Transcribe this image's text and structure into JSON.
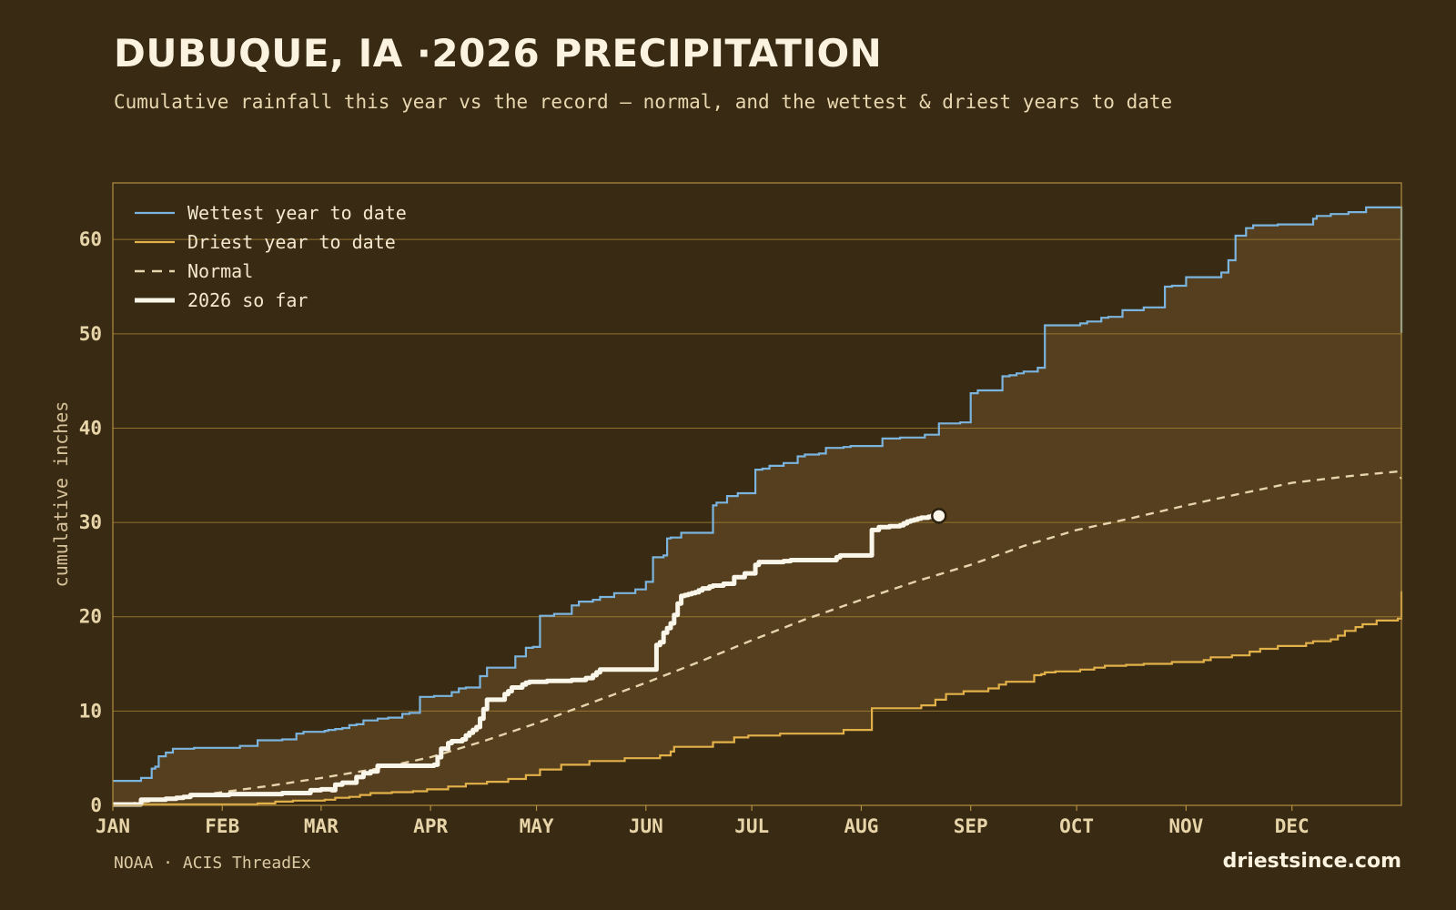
{
  "header": {
    "title": "DUBUQUE, IA ·2026 PRECIPITATION",
    "subtitle": "Cumulative rainfall this year vs the record — normal, and the wettest & driest years to date"
  },
  "footer": {
    "source": "NOAA · ACIS ThreadEx",
    "brand": "driestsince.com"
  },
  "colors": {
    "background": "#382a13",
    "band_fill": "#553f1e",
    "frame": "#b38f3f",
    "grid": "#a17f33",
    "wettest": "#7bb5df",
    "driest": "#e3b14a",
    "normal": "#e6d4ad",
    "current": "#fbf6ea"
  },
  "chart_data": {
    "type": "line",
    "ylabel": "cumulative inches",
    "ylim": [
      0,
      66
    ],
    "xlim": [
      0,
      365
    ],
    "grid": true,
    "legend_position": "top-left",
    "month_ticks": [
      {
        "label": "JAN",
        "day": 0
      },
      {
        "label": "FEB",
        "day": 31
      },
      {
        "label": "MAR",
        "day": 59
      },
      {
        "label": "APR",
        "day": 90
      },
      {
        "label": "MAY",
        "day": 120
      },
      {
        "label": "JUN",
        "day": 151
      },
      {
        "label": "JUL",
        "day": 181
      },
      {
        "label": "AUG",
        "day": 212
      },
      {
        "label": "SEP",
        "day": 243
      },
      {
        "label": "OCT",
        "day": 273
      },
      {
        "label": "NOV",
        "day": 304
      },
      {
        "label": "DEC",
        "day": 334
      }
    ],
    "y_ticks": [
      0,
      10,
      20,
      30,
      40,
      50,
      60
    ],
    "series": [
      {
        "name": "Wettest year to date",
        "key": "wettest",
        "step": true,
        "x": [
          0,
          7,
          8,
          10,
          11,
          12,
          13,
          15,
          17,
          19,
          23,
          30,
          36,
          41,
          44,
          48,
          52,
          54,
          60,
          61,
          63,
          65,
          67,
          69,
          71,
          75,
          78,
          80,
          82,
          84,
          87,
          89,
          91,
          96,
          98,
          100,
          104,
          106,
          108,
          114,
          116,
          117,
          119,
          121,
          125,
          127,
          130,
          132,
          136,
          138,
          142,
          148,
          151,
          153,
          156,
          157,
          158,
          161,
          163,
          170,
          171,
          174,
          177,
          182,
          183,
          184,
          186,
          190,
          194,
          196,
          200,
          202,
          207,
          209,
          213,
          218,
          221,
          223,
          230,
          234,
          240,
          243,
          245,
          252,
          254,
          256,
          258,
          260,
          262,
          264,
          269,
          274,
          276,
          280,
          282,
          286,
          292,
          298,
          300,
          304,
          312,
          314,
          316,
          318,
          321,
          323,
          330,
          340,
          341,
          345,
          350,
          355,
          357,
          364,
          365
        ],
        "y": [
          2.6,
          2.6,
          2.9,
          2.9,
          3.9,
          4.1,
          5.2,
          5.6,
          6.0,
          6.0,
          6.1,
          6.1,
          6.3,
          6.9,
          6.9,
          7.0,
          7.6,
          7.8,
          7.9,
          8.0,
          8.1,
          8.2,
          8.5,
          8.6,
          9.0,
          9.2,
          9.3,
          9.3,
          9.7,
          9.8,
          11.5,
          11.5,
          11.6,
          12.0,
          12.4,
          12.5,
          13.7,
          14.6,
          14.6,
          15.8,
          15.8,
          16.7,
          16.8,
          20.1,
          20.3,
          20.3,
          21.2,
          21.6,
          21.8,
          22.1,
          22.5,
          22.9,
          23.7,
          26.3,
          26.5,
          28.3,
          28.4,
          28.9,
          28.9,
          31.8,
          32.1,
          32.8,
          33.1,
          35.6,
          35.6,
          35.7,
          36.0,
          36.3,
          37.0,
          37.2,
          37.3,
          37.9,
          38.0,
          38.1,
          38.1,
          38.9,
          38.9,
          39.0,
          39.3,
          40.5,
          40.6,
          43.7,
          44.0,
          45.5,
          45.6,
          45.8,
          46.0,
          46.0,
          46.4,
          50.9,
          50.9,
          51.1,
          51.3,
          51.7,
          51.8,
          52.5,
          52.8,
          55.0,
          55.1,
          56.0,
          56.0,
          56.5,
          57.8,
          60.4,
          61.2,
          61.5,
          61.6,
          62.2,
          62.5,
          62.7,
          62.9,
          63.4,
          63.4,
          63.4,
          50.1
        ]
      },
      {
        "name": "Driest year to date",
        "key": "driest",
        "step": true,
        "x": [
          0,
          41,
          46,
          51,
          60,
          63,
          67,
          70,
          73,
          79,
          85,
          89,
          95,
          100,
          106,
          112,
          117,
          121,
          127,
          135,
          145,
          155,
          158,
          159,
          170,
          176,
          180,
          189,
          207,
          215,
          217,
          229,
          233,
          236,
          241,
          243,
          248,
          251,
          253,
          261,
          263,
          264,
          267,
          274,
          278,
          281,
          287,
          292,
          300,
          309,
          311,
          317,
          322,
          325,
          330,
          338,
          340,
          345,
          347,
          349,
          352,
          354,
          358,
          364,
          365
        ],
        "y": [
          0.1,
          0.2,
          0.4,
          0.5,
          0.6,
          0.8,
          0.9,
          1.1,
          1.3,
          1.4,
          1.5,
          1.7,
          2.0,
          2.3,
          2.5,
          2.8,
          3.2,
          3.8,
          4.3,
          4.7,
          5.0,
          5.3,
          5.7,
          6.2,
          6.7,
          7.2,
          7.4,
          7.6,
          8.0,
          10.3,
          10.3,
          10.6,
          11.2,
          11.8,
          12.1,
          12.1,
          12.4,
          12.8,
          13.1,
          13.8,
          13.9,
          14.1,
          14.2,
          14.4,
          14.6,
          14.8,
          14.9,
          15.0,
          15.2,
          15.4,
          15.7,
          15.9,
          16.3,
          16.6,
          16.9,
          17.2,
          17.4,
          17.6,
          18.0,
          18.5,
          18.9,
          19.2,
          19.6,
          19.8,
          22.7
        ]
      },
      {
        "name": "Normal",
        "key": "normal",
        "step": false,
        "x": [
          0,
          15,
          31,
          45,
          59,
          75,
          90,
          105,
          120,
          135,
          151,
          166,
          181,
          196,
          212,
          228,
          243,
          258,
          273,
          288,
          304,
          320,
          334,
          350,
          364,
          365
        ],
        "y": [
          0.0,
          0.6,
          1.4,
          2.1,
          2.9,
          3.9,
          5.1,
          6.8,
          8.7,
          10.8,
          13.0,
          15.2,
          17.5,
          19.7,
          21.8,
          23.8,
          25.5,
          27.5,
          29.2,
          30.4,
          31.8,
          33.1,
          34.2,
          34.9,
          35.4,
          34.6
        ]
      },
      {
        "name": "2026 so far",
        "key": "current",
        "step": true,
        "x": [
          0,
          7,
          8,
          15,
          18,
          20,
          22,
          28,
          33,
          40,
          48,
          56,
          59,
          62,
          63,
          65,
          69,
          71,
          73,
          75,
          91,
          92,
          93,
          95,
          96,
          99,
          100,
          101,
          102,
          103,
          104,
          105,
          106,
          111,
          112,
          113,
          116,
          117,
          118,
          122,
          123,
          130,
          134,
          136,
          137,
          138,
          140,
          153,
          154,
          155,
          156,
          157,
          158,
          159,
          160,
          161,
          162,
          163,
          164,
          165,
          166,
          167,
          169,
          170,
          173,
          176,
          179,
          182,
          183,
          190,
          192,
          205,
          206,
          214,
          215,
          217,
          220,
          222,
          223,
          224,
          225,
          226,
          227,
          228,
          229,
          230,
          231,
          232,
          233,
          234
        ],
        "y": [
          0.1,
          0.1,
          0.6,
          0.7,
          0.8,
          0.9,
          1.1,
          1.1,
          1.2,
          1.2,
          1.3,
          1.6,
          1.7,
          1.6,
          2.2,
          2.4,
          3.0,
          3.4,
          3.6,
          4.2,
          4.3,
          5.1,
          6.0,
          6.6,
          6.8,
          7.0,
          7.4,
          7.7,
          8.0,
          8.3,
          9.2,
          10.2,
          11.2,
          11.8,
          12.1,
          12.5,
          12.8,
          13.0,
          13.1,
          13.1,
          13.2,
          13.3,
          13.5,
          13.8,
          14.1,
          14.4,
          14.4,
          14.4,
          17.0,
          17.3,
          18.3,
          18.8,
          19.3,
          20.2,
          21.4,
          22.2,
          22.3,
          22.4,
          22.5,
          22.6,
          22.8,
          23.0,
          23.2,
          23.3,
          23.5,
          24.2,
          24.6,
          25.5,
          25.8,
          25.9,
          26.0,
          26.3,
          26.5,
          26.5,
          29.2,
          29.5,
          29.6,
          29.6,
          29.7,
          29.9,
          30.1,
          30.2,
          30.3,
          30.4,
          30.5,
          30.5,
          30.6,
          30.7,
          30.7,
          30.7
        ]
      }
    ],
    "current_marker": {
      "x": 234,
      "y": 30.7
    }
  }
}
